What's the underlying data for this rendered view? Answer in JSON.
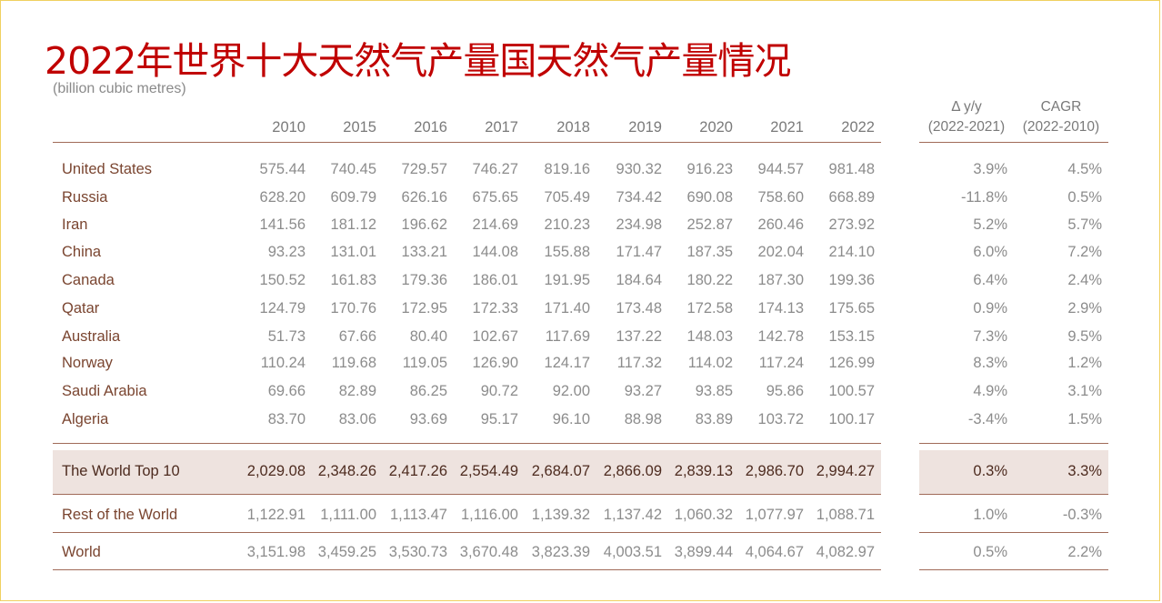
{
  "title": "2022年世界十大天然气产量国天然气产量情况",
  "units": "(billion cubic metres)",
  "years": [
    "2010",
    "2015",
    "2016",
    "2017",
    "2018",
    "2019",
    "2020",
    "2021",
    "2022"
  ],
  "delta_header": [
    "Δ y/y",
    "(2022-2021)"
  ],
  "cagr_header": [
    "CAGR",
    "(2022-2010)"
  ],
  "rows": [
    {
      "country": "United States",
      "values": [
        "575.44",
        "740.45",
        "729.57",
        "746.27",
        "819.16",
        "930.32",
        "916.23",
        "944.57",
        "981.48"
      ],
      "delta": "3.9%",
      "cagr": "4.5%"
    },
    {
      "country": "Russia",
      "values": [
        "628.20",
        "609.79",
        "626.16",
        "675.65",
        "705.49",
        "734.42",
        "690.08",
        "758.60",
        "668.89"
      ],
      "delta": "-11.8%",
      "cagr": "0.5%"
    },
    {
      "country": "Iran",
      "values": [
        "141.56",
        "181.12",
        "196.62",
        "214.69",
        "210.23",
        "234.98",
        "252.87",
        "260.46",
        "273.92"
      ],
      "delta": "5.2%",
      "cagr": "5.7%"
    },
    {
      "country": "China",
      "values": [
        "93.23",
        "131.01",
        "133.21",
        "144.08",
        "155.88",
        "171.47",
        "187.35",
        "202.04",
        "214.10"
      ],
      "delta": "6.0%",
      "cagr": "7.2%"
    },
    {
      "country": "Canada",
      "values": [
        "150.52",
        "161.83",
        "179.36",
        "186.01",
        "191.95",
        "184.64",
        "180.22",
        "187.30",
        "199.36"
      ],
      "delta": "6.4%",
      "cagr": "2.4%"
    },
    {
      "country": "Qatar",
      "values": [
        "124.79",
        "170.76",
        "172.95",
        "172.33",
        "171.40",
        "173.48",
        "172.58",
        "174.13",
        "175.65"
      ],
      "delta": "0.9%",
      "cagr": "2.9%"
    },
    {
      "country": "Australia",
      "values": [
        "51.73",
        "67.66",
        "80.40",
        "102.67",
        "117.69",
        "137.22",
        "148.03",
        "142.78",
        "153.15"
      ],
      "delta": "7.3%",
      "cagr": "9.5%"
    },
    {
      "country": "Norway",
      "values": [
        "110.24",
        "119.68",
        "119.05",
        "126.90",
        "124.17",
        "117.32",
        "114.02",
        "117.24",
        "126.99"
      ],
      "delta": "8.3%",
      "cagr": "1.2%"
    },
    {
      "country": "Saudi Arabia",
      "values": [
        "69.66",
        "82.89",
        "86.25",
        "90.72",
        "92.00",
        "93.27",
        "93.85",
        "95.86",
        "100.57"
      ],
      "delta": "4.9%",
      "cagr": "3.1%"
    },
    {
      "country": "Algeria",
      "values": [
        "83.70",
        "83.06",
        "93.69",
        "95.17",
        "96.10",
        "88.98",
        "83.89",
        "103.72",
        "100.17"
      ],
      "delta": "-3.4%",
      "cagr": "1.5%"
    }
  ],
  "top10": {
    "country": "The World Top 10",
    "values": [
      "2,029.08",
      "2,348.26",
      "2,417.26",
      "2,554.49",
      "2,684.07",
      "2,866.09",
      "2,839.13",
      "2,986.70",
      "2,994.27"
    ],
    "delta": "0.3%",
    "cagr": "3.3%"
  },
  "rest": {
    "country": "Rest of the World",
    "values": [
      "1,122.91",
      "1,111.00",
      "1,113.47",
      "1,116.00",
      "1,139.32",
      "1,137.42",
      "1,060.32",
      "1,077.97",
      "1,088.71"
    ],
    "delta": "1.0%",
    "cagr": "-0.3%"
  },
  "world": {
    "country": "World",
    "values": [
      "3,151.98",
      "3,459.25",
      "3,530.73",
      "3,670.48",
      "3,823.39",
      "4,003.51",
      "3,899.44",
      "4,064.67",
      "4,082.97"
    ],
    "delta": "0.5%",
    "cagr": "2.2%"
  }
}
